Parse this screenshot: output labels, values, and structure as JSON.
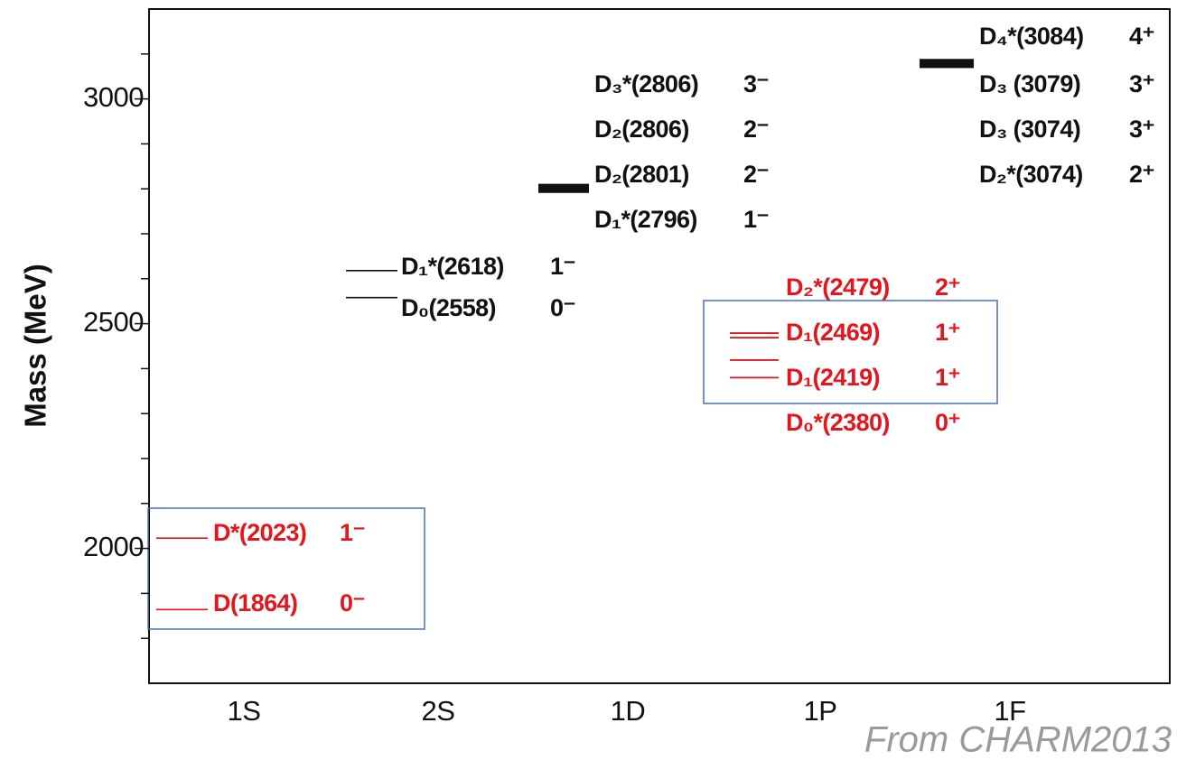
{
  "chart_data": {
    "type": "level",
    "ylabel": "Mass (MeV)",
    "ylim": [
      1700,
      3200
    ],
    "yticks": [
      2000,
      2500,
      3000
    ],
    "yminor": [
      1800,
      1900,
      2100,
      2200,
      2300,
      2400,
      2600,
      2700,
      2800,
      2900,
      3100
    ],
    "categories": [
      "1S",
      "2S",
      "1D",
      "1P",
      "1F"
    ],
    "groups": [
      {
        "color": "#e3161e",
        "levels": [
          {
            "label": "D*(2023)",
            "jp": "1⁻",
            "mass": 2023
          },
          {
            "label": "D(1864)",
            "jp": "0⁻",
            "mass": 1864
          }
        ]
      },
      {
        "color": "#111111",
        "levels": [
          {
            "label": "D₁*(2618)",
            "jp": "1⁻",
            "mass": 2618
          },
          {
            "label": "D₀(2558)",
            "jp": "0⁻",
            "mass": 2558
          }
        ]
      },
      {
        "color": "#111111",
        "levels": [
          {
            "label": "D₃*(2806)",
            "jp": "3⁻",
            "mass": 2806
          },
          {
            "label": "D₂(2806)",
            "jp": "2⁻",
            "mass": 2806
          },
          {
            "label": "D₂(2801)",
            "jp": "2⁻",
            "mass": 2801
          },
          {
            "label": "D₁*(2796)",
            "jp": "1⁻",
            "mass": 2796
          }
        ]
      },
      {
        "color": "#e3161e",
        "levels": [
          {
            "label": "D₂*(2479)",
            "jp": "2⁺",
            "mass": 2479
          },
          {
            "label": "D₁(2469)",
            "jp": "1⁺",
            "mass": 2469
          },
          {
            "label": "D₁(2419)",
            "jp": "1⁺",
            "mass": 2419
          },
          {
            "label": "D₀*(2380)",
            "jp": "0⁺",
            "mass": 2380
          }
        ]
      },
      {
        "color": "#111111",
        "levels": [
          {
            "label": "D₄*(3084)",
            "jp": "4⁺",
            "mass": 3084
          },
          {
            "label": "D₃ (3079)",
            "jp": "3⁺",
            "mass": 3079
          },
          {
            "label": "D₃ (3074)",
            "jp": "3⁺",
            "mass": 3074
          },
          {
            "label": "D₂*(3074)",
            "jp": "2⁺",
            "mass": 3074
          }
        ]
      }
    ],
    "note": "From CHARM2013"
  }
}
